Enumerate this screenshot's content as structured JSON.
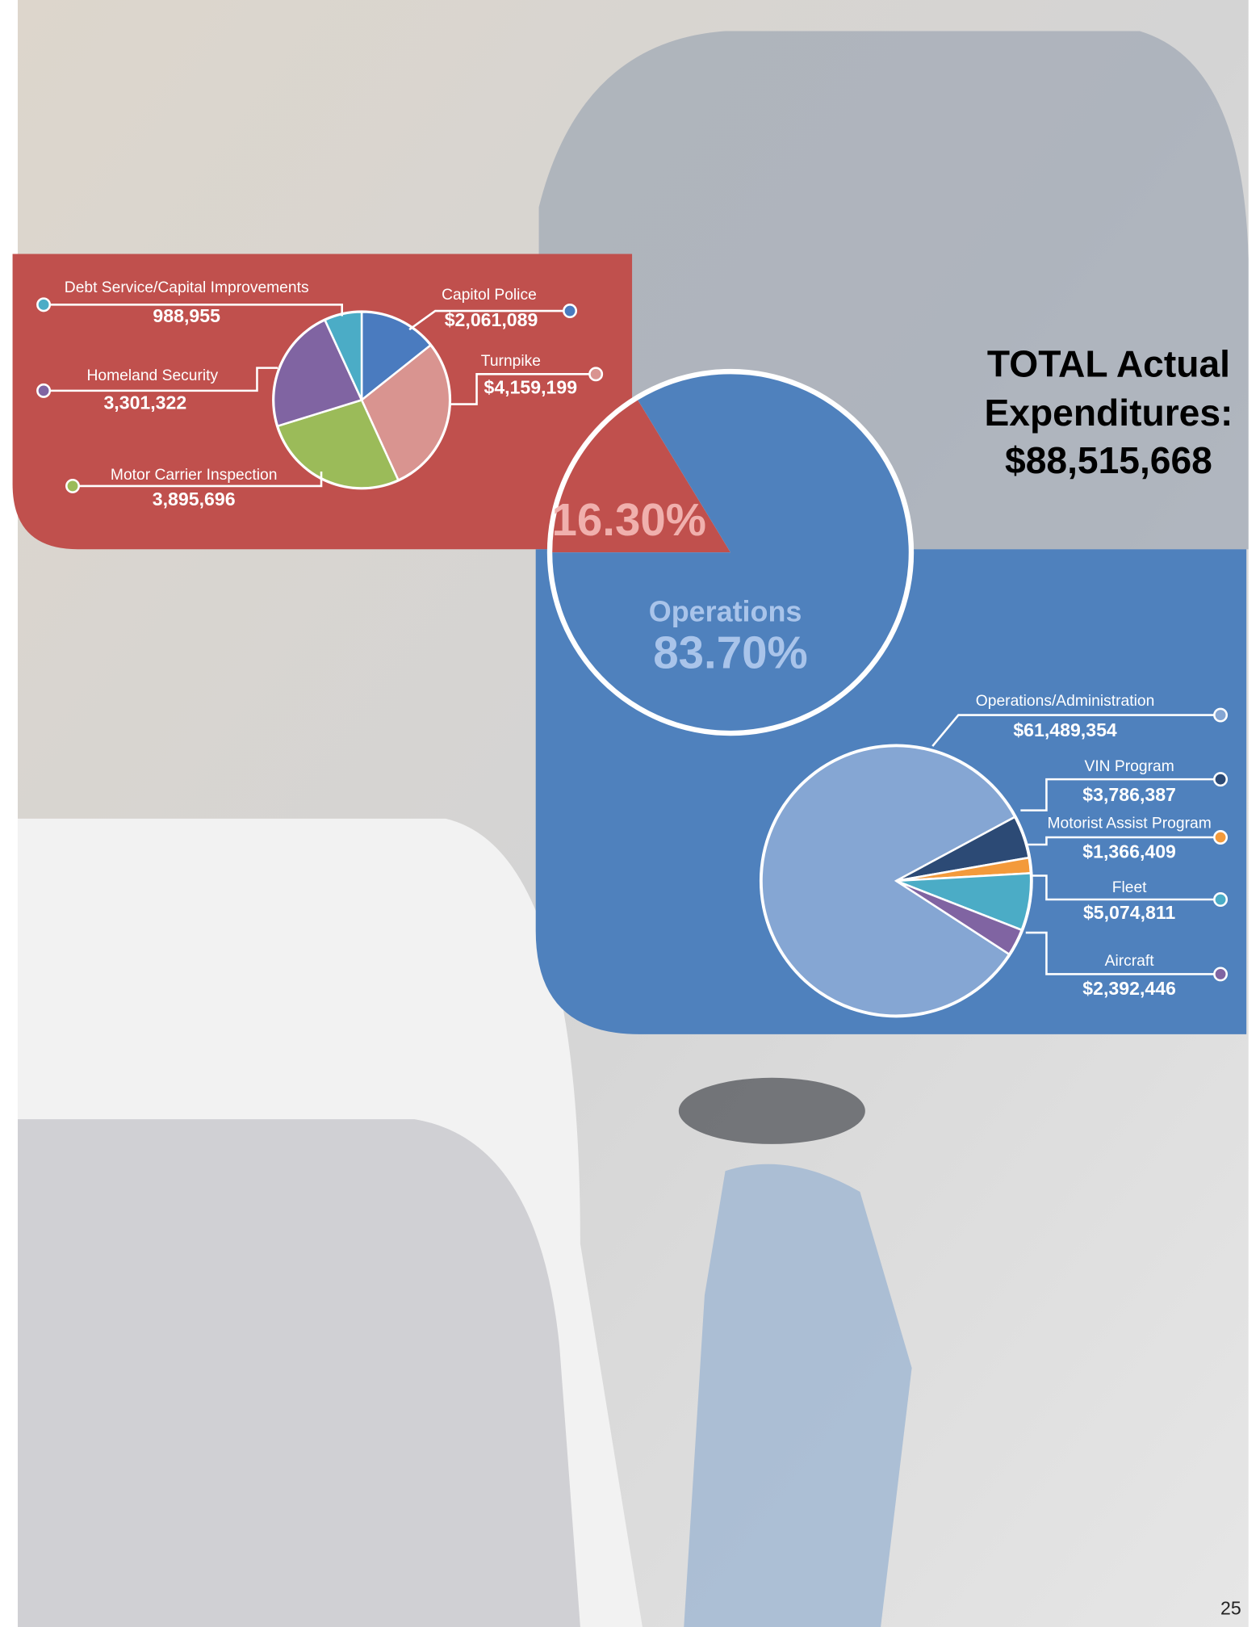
{
  "chart_data": [
    {
      "type": "pie",
      "categories": [
        null,
        "Operations"
      ],
      "values": [
        16.3,
        83.7
      ],
      "value_labels": [
        "16.30%",
        "83.70%"
      ],
      "colors": [
        "#c0504d",
        "#4f81bd"
      ]
    },
    {
      "type": "pie",
      "categories": [
        "Capitol Police",
        "Turnpike",
        "Motor Carrier Inspection",
        "Homeland Security",
        "Debt Service/Capital Improvements"
      ],
      "values": [
        2061089,
        4159199,
        3895696,
        3301322,
        988955
      ],
      "value_labels": [
        "$2,061,089",
        "$4,159,199",
        "3,895,696",
        "3,301,322",
        "988,955"
      ],
      "colors": [
        "#4a7bbf",
        "#d99490",
        "#9bbb59",
        "#8064a2",
        "#4bacc6"
      ]
    },
    {
      "type": "pie",
      "categories": [
        "Operations/Administration",
        "VIN Program",
        "Motorist Assist Program",
        "Fleet",
        "Aircraft"
      ],
      "values": [
        61489354,
        3786387,
        1366409,
        5074811,
        2392446
      ],
      "value_labels": [
        "$61,489,354",
        "$3,786,387",
        "$1,366,409",
        "$5,074,811",
        "$2,392,446"
      ],
      "colors": [
        "#85a6d3",
        "#2c4a75",
        "#f39a3b",
        "#4bacc6",
        "#8064a2"
      ]
    }
  ],
  "total": {
    "label_lines": [
      "TOTAL Actual",
      "Expenditures:"
    ],
    "amount": "$88,515,668"
  },
  "page_number": "25"
}
